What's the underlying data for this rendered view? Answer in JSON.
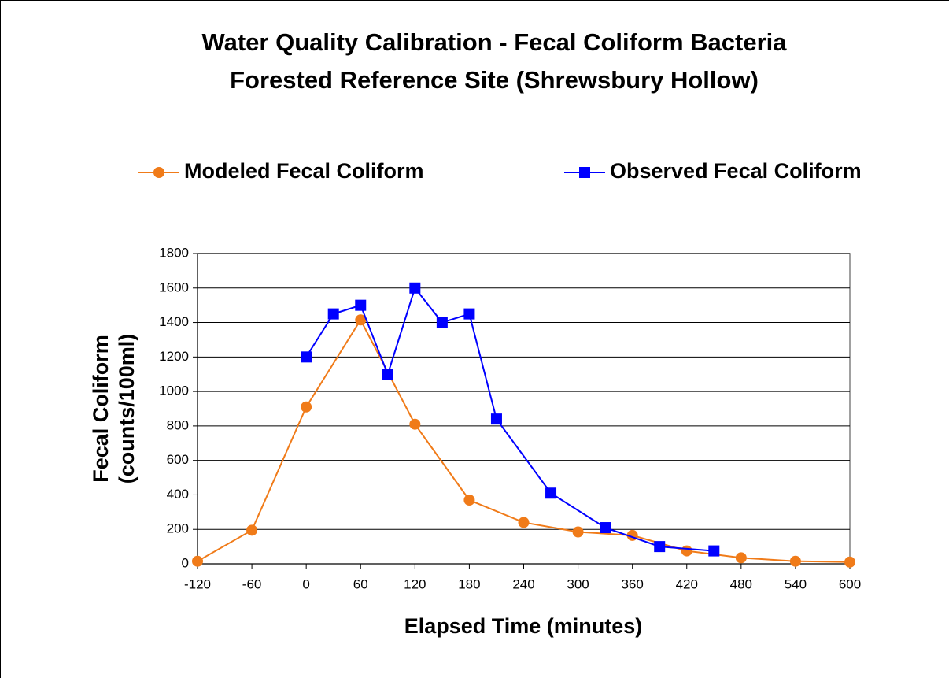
{
  "chart_data": {
    "type": "line",
    "title": [
      "Water Quality Calibration - Fecal Coliform Bacteria",
      "Forested Reference Site (Shrewsbury Hollow)"
    ],
    "x_label": "Elapsed Time (minutes)",
    "y_label": [
      "Fecal Coliform",
      "(counts/100ml)"
    ],
    "series": [
      {
        "name": "Modeled Fecal Coliform",
        "color": "#f07b19",
        "marker": "circle",
        "x": [
          -120,
          -60,
          0,
          60,
          120,
          180,
          240,
          300,
          360,
          420,
          480,
          540,
          600
        ],
        "values": [
          15,
          195,
          910,
          1415,
          810,
          370,
          240,
          185,
          165,
          75,
          35,
          15,
          10
        ]
      },
      {
        "name": "Observed Fecal Coliform",
        "color": "#0000ff",
        "marker": "square",
        "x": [
          0,
          30,
          60,
          90,
          120,
          150,
          180,
          210,
          270,
          330,
          390,
          450
        ],
        "values": [
          1200,
          1450,
          1500,
          1100,
          1600,
          1400,
          1450,
          840,
          410,
          210,
          100,
          75
        ]
      }
    ],
    "xlim": [
      -120,
      600
    ],
    "xticks": [
      -120,
      -60,
      0,
      60,
      120,
      180,
      240,
      300,
      360,
      420,
      480,
      540,
      600
    ],
    "ylim": [
      0,
      1800
    ],
    "yticks": [
      0,
      200,
      400,
      600,
      800,
      1000,
      1200,
      1400,
      1600,
      1800
    ],
    "grid": true,
    "legend": "top"
  }
}
